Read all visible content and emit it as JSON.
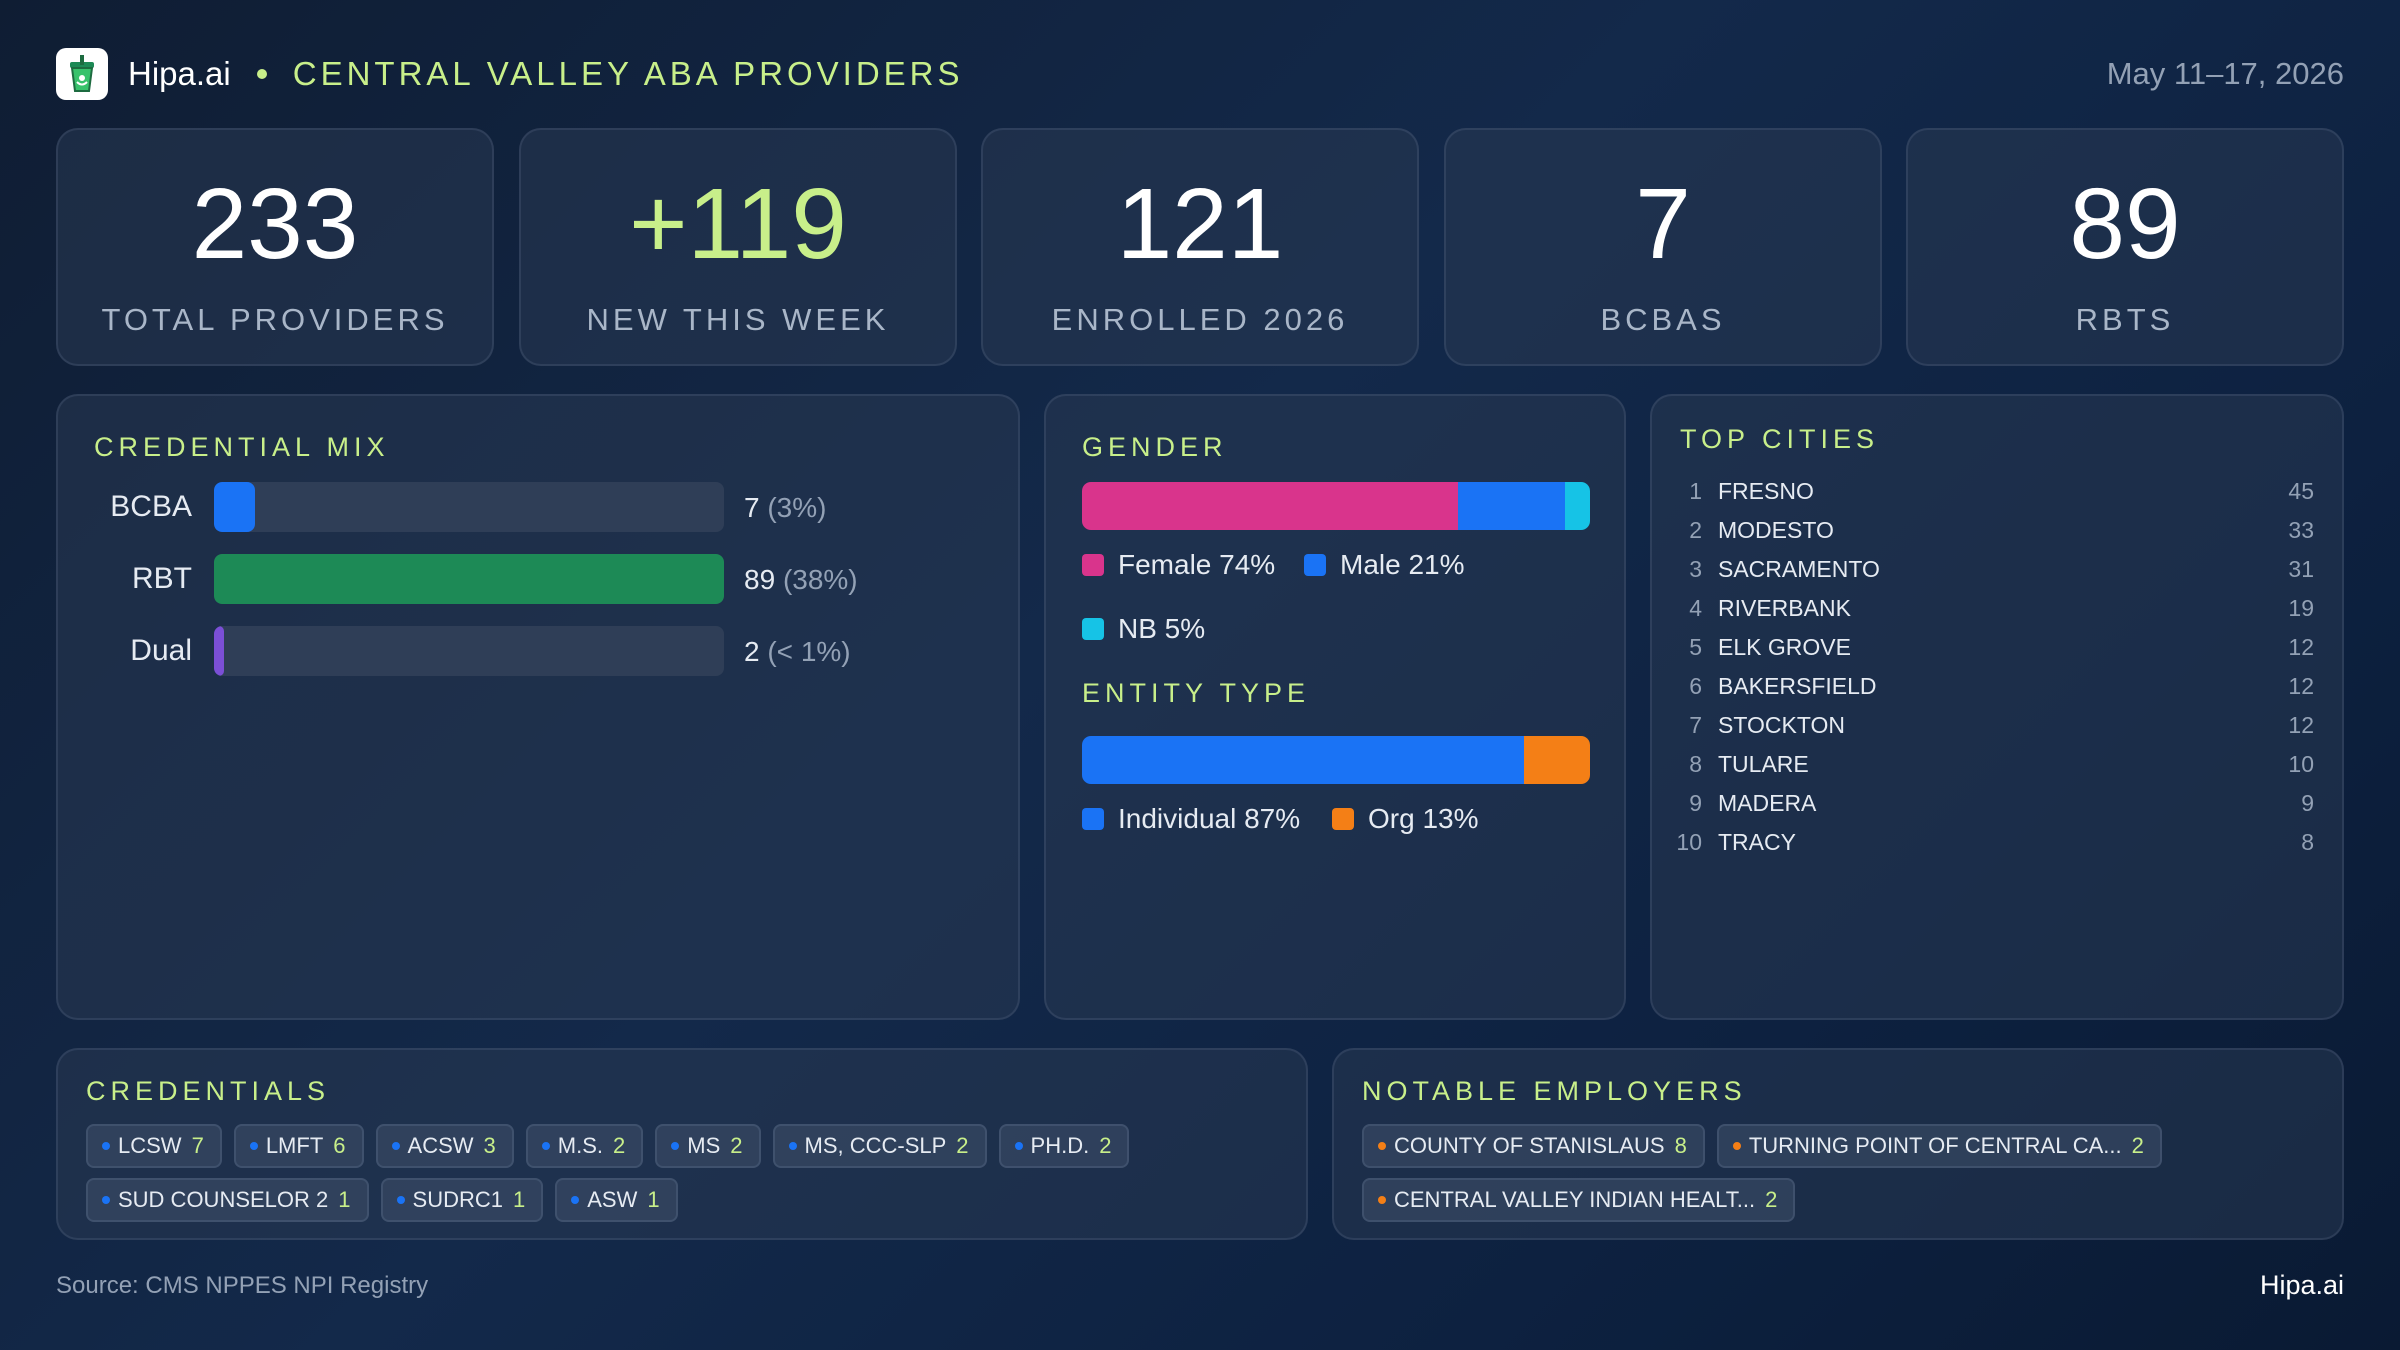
{
  "header": {
    "brand": "Hipa.ai",
    "title": "CENTRAL VALLEY ABA PROVIDERS",
    "date_range": "May 11–17, 2026",
    "logo_icon": "cup-logo-icon"
  },
  "stats": [
    {
      "value": "233",
      "label": "TOTAL PROVIDERS"
    },
    {
      "value": "+119",
      "label": "NEW THIS WEEK"
    },
    {
      "value": "121",
      "label": "ENROLLED 2026"
    },
    {
      "value": "7",
      "label": "BCBAS"
    },
    {
      "value": "89",
      "label": "RBTS"
    }
  ],
  "credential_mix": {
    "title": "CREDENTIAL MIX",
    "rows": [
      {
        "label": "BCBA",
        "count": "7",
        "pct": "(3%)",
        "fraction": 0.08,
        "color": "#1a73f5"
      },
      {
        "label": "RBT",
        "count": "89",
        "pct": "(38%)",
        "fraction": 1.0,
        "color": "#1d8a56"
      },
      {
        "label": "Dual",
        "count": "2",
        "pct": "(< 1%)",
        "fraction": 0.02,
        "color": "#7b4fd6"
      }
    ]
  },
  "gender": {
    "title": "GENDER",
    "segments": [
      {
        "label": "Female 74%",
        "share": 74,
        "color": "#d9348c"
      },
      {
        "label": "Male 21%",
        "share": 21,
        "color": "#1a73f5"
      },
      {
        "label": "NB 5%",
        "share": 5,
        "color": "#16c3e6"
      }
    ]
  },
  "entity_type": {
    "title": "ENTITY TYPE",
    "segments": [
      {
        "label": "Individual 87%",
        "share": 87,
        "color": "#1a73f5"
      },
      {
        "label": "Org 13%",
        "share": 13,
        "color": "#f47f16"
      }
    ]
  },
  "top_cities": {
    "title": "TOP CITIES",
    "items": [
      {
        "rank": "1",
        "name": "FRESNO",
        "count": "45"
      },
      {
        "rank": "2",
        "name": "MODESTO",
        "count": "33"
      },
      {
        "rank": "3",
        "name": "SACRAMENTO",
        "count": "31"
      },
      {
        "rank": "4",
        "name": "RIVERBANK",
        "count": "19"
      },
      {
        "rank": "5",
        "name": "ELK GROVE",
        "count": "12"
      },
      {
        "rank": "6",
        "name": "BAKERSFIELD",
        "count": "12"
      },
      {
        "rank": "7",
        "name": "STOCKTON",
        "count": "12"
      },
      {
        "rank": "8",
        "name": "TULARE",
        "count": "10"
      },
      {
        "rank": "9",
        "name": "MADERA",
        "count": "9"
      },
      {
        "rank": "10",
        "name": "TRACY",
        "count": "8"
      }
    ]
  },
  "credentials": {
    "title": "CREDENTIALS",
    "dot_color": "#1a73f5",
    "chips": [
      {
        "label": "LCSW",
        "count": "7"
      },
      {
        "label": "LMFT",
        "count": "6"
      },
      {
        "label": "ACSW",
        "count": "3"
      },
      {
        "label": "M.S.",
        "count": "2"
      },
      {
        "label": "MS",
        "count": "2"
      },
      {
        "label": "MS, CCC-SLP",
        "count": "2"
      },
      {
        "label": "PH.D.",
        "count": "2"
      },
      {
        "label": "SUD COUNSELOR 2",
        "count": "1"
      },
      {
        "label": "SUDRC1",
        "count": "1"
      },
      {
        "label": "ASW",
        "count": "1"
      }
    ]
  },
  "employers": {
    "title": "NOTABLE EMPLOYERS",
    "dot_color": "#f47f16",
    "chips": [
      {
        "label": "COUNTY OF STANISLAUS",
        "count": "8"
      },
      {
        "label": "TURNING POINT OF CENTRAL CA...",
        "count": "2"
      },
      {
        "label": "CENTRAL VALLEY INDIAN HEALT...",
        "count": "2"
      }
    ]
  },
  "footer": {
    "source": "Source: CMS NPPES NPI Registry",
    "brand": "Hipa.ai"
  }
}
